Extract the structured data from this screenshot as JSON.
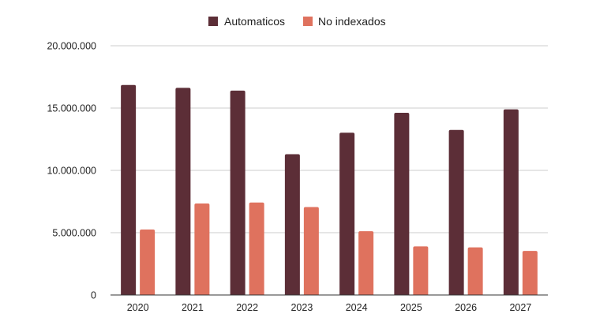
{
  "chart_data": {
    "type": "bar",
    "categories": [
      "2020",
      "2021",
      "2022",
      "2023",
      "2024",
      "2025",
      "2026",
      "2027"
    ],
    "series": [
      {
        "name": "Automaticos",
        "color": "#5c2e37",
        "values": [
          16850000,
          16620000,
          16400000,
          11300000,
          13020000,
          14620000,
          13240000,
          14900000
        ]
      },
      {
        "name": "No indexados",
        "color": "#df725e",
        "values": [
          5250000,
          7340000,
          7420000,
          7060000,
          5120000,
          3900000,
          3820000,
          3540000
        ]
      }
    ],
    "ylim": [
      0,
      20000000
    ],
    "yticks": [
      0,
      5000000,
      10000000,
      15000000,
      20000000
    ],
    "ytick_labels": [
      "0",
      "5.000.000",
      "10.000.000",
      "15.000.000",
      "20.000.000"
    ],
    "grid": true,
    "legend_position": "top-center",
    "title": "",
    "xlabel": "",
    "ylabel": ""
  }
}
